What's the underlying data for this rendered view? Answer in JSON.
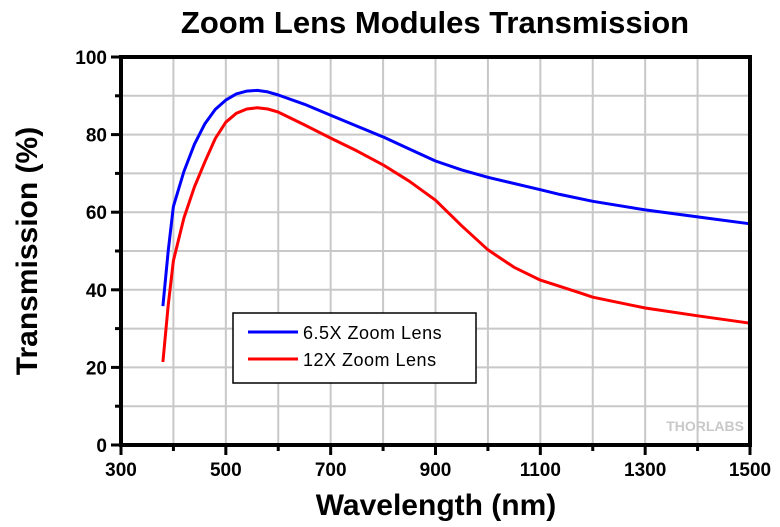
{
  "chart_data": {
    "type": "line",
    "title": "Zoom Lens Modules Transmission",
    "xlabel": "Wavelength (nm)",
    "ylabel": "Transmission (%)",
    "xlim": [
      300,
      1500
    ],
    "ylim": [
      0,
      100
    ],
    "xticks": [
      300,
      500,
      700,
      900,
      1100,
      1300,
      1500
    ],
    "xminor": [
      400,
      600,
      800,
      1000,
      1200,
      1400
    ],
    "yticks": [
      0,
      20,
      40,
      60,
      80,
      100
    ],
    "yminor": [
      10,
      30,
      50,
      70,
      90
    ],
    "grid": true,
    "legend_position": "lower-left-center",
    "watermark": "THORLABS",
    "colors": {
      "grid": "#c8c8c8",
      "axis": "#000000"
    },
    "series": [
      {
        "name": "6.5X Zoom Lens",
        "color": "#0000ff",
        "x": [
          380,
          390,
          400,
          420,
          440,
          460,
          480,
          500,
          520,
          540,
          560,
          580,
          600,
          650,
          700,
          750,
          800,
          850,
          900,
          950,
          1000,
          1100,
          1137,
          1200,
          1300,
          1400,
          1500
        ],
        "y": [
          35.8,
          50.0,
          61.5,
          70.5,
          77.5,
          82.8,
          86.5,
          88.9,
          90.5,
          91.2,
          91.4,
          91.0,
          90.2,
          87.8,
          85.0,
          82.2,
          79.4,
          76.3,
          73.2,
          70.9,
          69.0,
          65.8,
          64.6,
          62.8,
          60.6,
          58.8,
          57.0
        ]
      },
      {
        "name": "12X Zoom Lens",
        "color": "#ff0000",
        "x": [
          380,
          390,
          400,
          420,
          440,
          460,
          480,
          500,
          520,
          540,
          560,
          580,
          600,
          650,
          700,
          750,
          800,
          850,
          900,
          950,
          1000,
          1050,
          1100,
          1176,
          1200,
          1300,
          1400,
          1500
        ],
        "y": [
          21.4,
          36.0,
          47.5,
          58.5,
          66.5,
          73.0,
          79.0,
          83.2,
          85.5,
          86.6,
          86.9,
          86.6,
          85.8,
          82.5,
          79.1,
          75.8,
          72.2,
          68.0,
          63.1,
          56.5,
          50.3,
          45.8,
          42.5,
          39.2,
          38.1,
          35.3,
          33.3,
          31.4
        ]
      }
    ]
  }
}
